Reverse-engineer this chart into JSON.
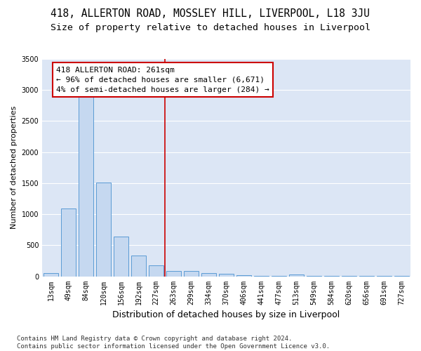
{
  "title": "418, ALLERTON ROAD, MOSSLEY HILL, LIVERPOOL, L18 3JU",
  "subtitle": "Size of property relative to detached houses in Liverpool",
  "xlabel": "Distribution of detached houses by size in Liverpool",
  "ylabel": "Number of detached properties",
  "categories": [
    "13sqm",
    "49sqm",
    "84sqm",
    "120sqm",
    "156sqm",
    "192sqm",
    "227sqm",
    "263sqm",
    "299sqm",
    "334sqm",
    "370sqm",
    "406sqm",
    "441sqm",
    "477sqm",
    "513sqm",
    "549sqm",
    "584sqm",
    "620sqm",
    "656sqm",
    "691sqm",
    "727sqm"
  ],
  "values": [
    50,
    1090,
    2930,
    1510,
    640,
    330,
    175,
    90,
    80,
    55,
    35,
    15,
    10,
    5,
    30,
    5,
    3,
    2,
    2,
    2,
    2
  ],
  "bar_color": "#c5d8f0",
  "bar_edge_color": "#5b9bd5",
  "vline_color": "#cc0000",
  "annotation_text": "418 ALLERTON ROAD: 261sqm\n← 96% of detached houses are smaller (6,671)\n4% of semi-detached houses are larger (284) →",
  "annotation_box_color": "#ffffff",
  "annotation_box_edge": "#cc0000",
  "ylim": [
    0,
    3500
  ],
  "yticks": [
    0,
    500,
    1000,
    1500,
    2000,
    2500,
    3000,
    3500
  ],
  "background_color": "#dce6f5",
  "grid_color": "#ffffff",
  "fig_background": "#ffffff",
  "footer": "Contains HM Land Registry data © Crown copyright and database right 2024.\nContains public sector information licensed under the Open Government Licence v3.0.",
  "title_fontsize": 10.5,
  "subtitle_fontsize": 9.5,
  "xlabel_fontsize": 9,
  "ylabel_fontsize": 8,
  "tick_fontsize": 7,
  "footer_fontsize": 6.5,
  "annotation_fontsize": 8
}
